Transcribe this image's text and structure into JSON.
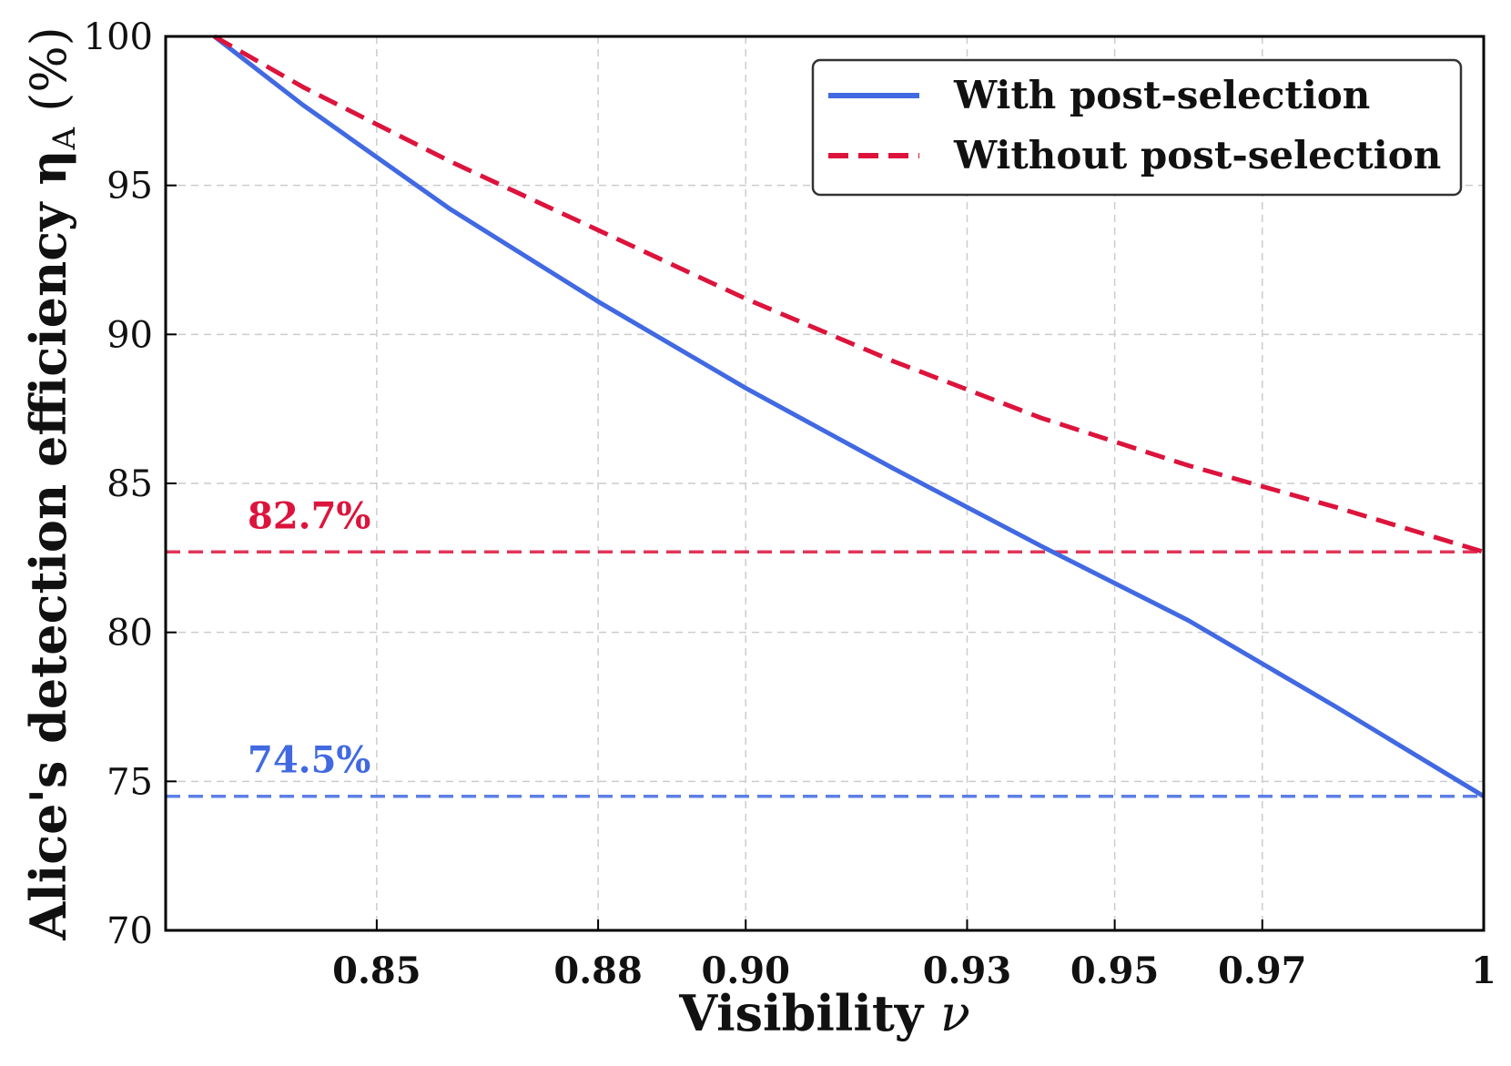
{
  "chart_data": {
    "type": "line",
    "xlabel": "Visibility ν",
    "ylabel": "Alice's detection efficiency η_A (%)",
    "ylabel_parts": {
      "main": "Alice's detection efficiency η",
      "sub": "A",
      "unit": " (%)"
    },
    "xlabel_parts": {
      "main": "Visibility ",
      "symbol": "ν"
    },
    "xlim": [
      0.8214,
      1.0
    ],
    "ylim": [
      70,
      100
    ],
    "x_ticks": [
      0.85,
      0.88,
      0.9,
      0.93,
      0.95,
      0.97,
      1.0
    ],
    "x_tick_labels": [
      "0.85",
      "0.88",
      "0.90",
      "0.93",
      "0.95",
      "0.97",
      "1"
    ],
    "y_ticks": [
      70,
      75,
      80,
      85,
      90,
      95,
      100
    ],
    "y_tick_labels": [
      "70",
      "75",
      "80",
      "85",
      "90",
      "95",
      "100"
    ],
    "grid": true,
    "legend_position": "top-right",
    "series": [
      {
        "name": "With post-selection",
        "color": "#4169E1",
        "style": "solid",
        "x": [
          0.828,
          0.84,
          0.86,
          0.88,
          0.9,
          0.92,
          0.94,
          0.96,
          0.98,
          1.0
        ],
        "y": [
          100.0,
          97.7,
          94.2,
          91.1,
          88.2,
          85.5,
          82.9,
          80.4,
          77.5,
          74.5
        ]
      },
      {
        "name": "Without post-selection",
        "color": "#DC143C",
        "style": "dashed",
        "x": [
          0.828,
          0.84,
          0.86,
          0.88,
          0.9,
          0.92,
          0.94,
          0.96,
          0.98,
          1.0
        ],
        "y": [
          100.0,
          98.3,
          95.8,
          93.5,
          91.2,
          89.1,
          87.2,
          85.6,
          84.2,
          82.7
        ]
      }
    ],
    "reference_lines": [
      {
        "y": 82.7,
        "color": "#DC143C",
        "style": "dashed",
        "label": "82.7%"
      },
      {
        "y": 74.5,
        "color": "#4169E1",
        "style": "dashed",
        "label": "74.5%"
      }
    ]
  }
}
